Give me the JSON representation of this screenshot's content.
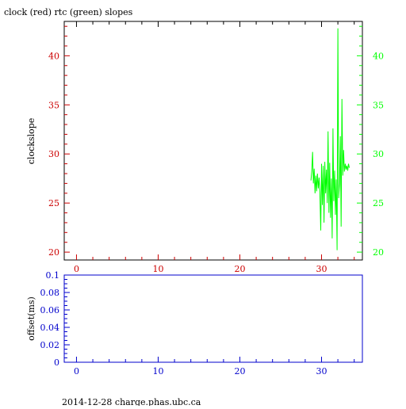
{
  "title": "clock (red) rtc (green) slopes",
  "footer": "2014-12-28 charge.phas.ubc.ca",
  "colors": {
    "red": "#cc0000",
    "green": "#00ff00",
    "blue": "#0000cc",
    "axis": "#000000"
  },
  "chart_data": [
    {
      "type": "line",
      "ylabel": "clockslope",
      "xlim": [
        -1.5,
        35
      ],
      "ylim": [
        19.2,
        43.5
      ],
      "x_ticks": [
        0,
        10,
        20,
        30
      ],
      "y_ticks_left": [
        20,
        25,
        30,
        35,
        40
      ],
      "y_ticks_right": [
        20,
        25,
        30,
        35,
        40
      ],
      "grid": false,
      "series": [
        {
          "color": "#00ff00",
          "x": [
            28.7,
            28.8,
            28.9,
            29.0,
            29.1,
            29.2,
            29.3,
            29.4,
            29.5,
            29.6,
            29.7,
            29.8,
            29.9,
            30.0,
            30.1,
            30.2,
            30.3,
            30.4,
            30.5,
            30.6,
            30.7,
            30.8,
            30.9,
            31.0,
            31.1,
            31.2,
            31.3,
            31.4,
            31.5,
            31.6,
            31.7,
            31.8,
            31.9,
            32.0,
            32.1,
            32.2,
            32.3,
            32.4,
            32.5,
            32.6,
            32.7,
            32.8,
            32.9,
            33.0,
            33.1,
            33.2,
            33.3,
            33.4
          ],
          "values": [
            27.3,
            28.2,
            30.2,
            27.0,
            28.5,
            26.0,
            27.8,
            26.2,
            28.0,
            26.5,
            27.6,
            26.0,
            22.2,
            29.0,
            24.8,
            28.8,
            23.0,
            29.2,
            26.0,
            28.4,
            25.0,
            32.3,
            24.0,
            29.1,
            23.5,
            27.5,
            21.4,
            32.6,
            25.2,
            28.3,
            23.8,
            27.4,
            20.2,
            42.8,
            25.5,
            27.0,
            31.8,
            22.6,
            35.6,
            27.8,
            30.4,
            28.2,
            29.0,
            28.4,
            28.8,
            28.3,
            29.0,
            28.6
          ]
        }
      ]
    },
    {
      "type": "line",
      "ylabel": "offset(ms)",
      "xlim": [
        -1.5,
        35
      ],
      "ylim": [
        0,
        0.1
      ],
      "x_ticks": [
        0,
        10,
        20,
        30
      ],
      "y_ticks": [
        0,
        0.02,
        0.04,
        0.06,
        0.08,
        0.1
      ],
      "y_tick_labels": [
        "0",
        "0.02",
        "0.04",
        "0.06",
        "0.08",
        "0.1"
      ],
      "grid": false,
      "series": []
    }
  ]
}
